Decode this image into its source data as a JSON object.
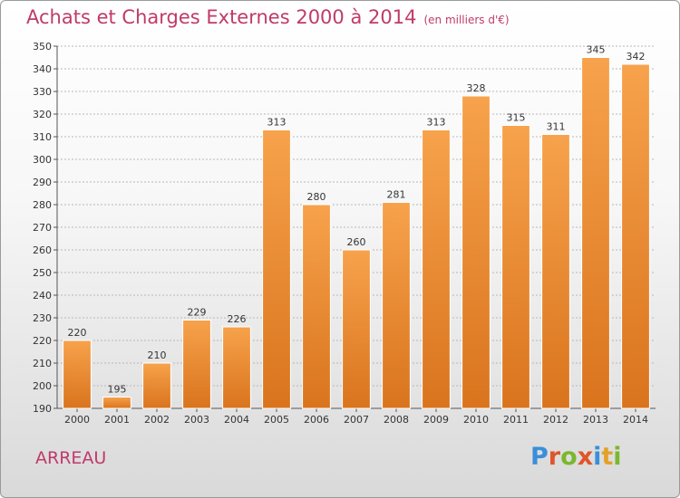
{
  "header": {
    "title": "Achats et Charges Externes 2000 à 2014",
    "unit": "(en milliers d'€)"
  },
  "footer": {
    "commune": "ARREAU",
    "logo_text": "Proxiti"
  },
  "colors": {
    "bar_light": "#f7a24c",
    "bar_dark": "#d9741d",
    "title": "#c03a6a",
    "grid": "#b8b8b8"
  },
  "chart_data": {
    "type": "bar",
    "title": "Achats et Charges Externes 2000 à 2014",
    "subtitle": "(en milliers d'€)",
    "xlabel": "",
    "ylabel": "",
    "categories": [
      "2000",
      "2001",
      "2002",
      "2003",
      "2004",
      "2005",
      "2006",
      "2007",
      "2008",
      "2009",
      "2010",
      "2011",
      "2012",
      "2013",
      "2014"
    ],
    "values": [
      220,
      195,
      210,
      229,
      226,
      313,
      280,
      260,
      281,
      313,
      328,
      315,
      311,
      345,
      342
    ],
    "ylim": [
      190,
      350
    ],
    "yticks": [
      190,
      200,
      210,
      220,
      230,
      240,
      250,
      260,
      270,
      280,
      290,
      300,
      310,
      320,
      330,
      340,
      350
    ],
    "grid": true,
    "data_labels": true
  }
}
